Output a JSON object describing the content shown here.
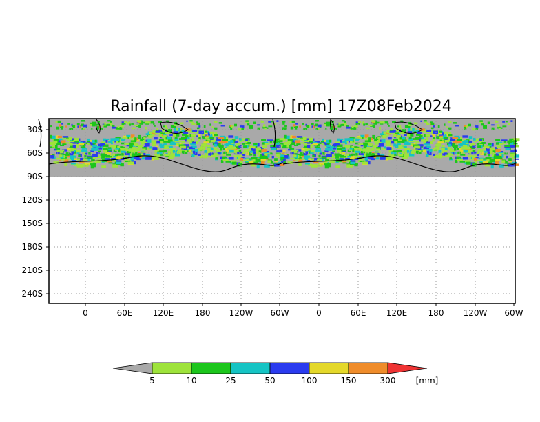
{
  "title": "Rainfall (7-day accum.) [mm] 17Z08Feb2024",
  "map": {
    "y_ticks": [
      "30S",
      "60S",
      "90S",
      "120S",
      "150S",
      "180S",
      "210S",
      "240S"
    ],
    "x_ticks": [
      "0",
      "60E",
      "120E",
      "180",
      "120W",
      "60W",
      "0",
      "60E",
      "120E",
      "180",
      "120W",
      "60W"
    ],
    "data_band": "30S-90S",
    "background_color": "#a9a9a9",
    "plot_background": "#ffffff"
  },
  "colorbar": {
    "labels": [
      "5",
      "10",
      "25",
      "50",
      "100",
      "150",
      "300"
    ],
    "unit": "[mm]",
    "colors": [
      "#a9a9a9",
      "#9ee33b",
      "#1cc61c",
      "#15c4c4",
      "#2a3bef",
      "#e4d82a",
      "#ef8c2a",
      "#ef3434"
    ]
  }
}
